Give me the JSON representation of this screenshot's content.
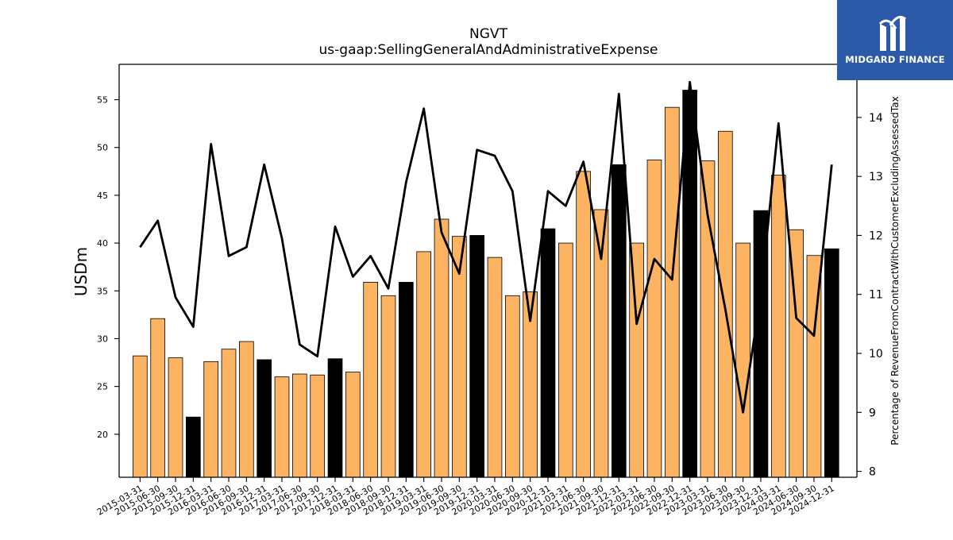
{
  "brand": {
    "name": "MIDGARD FINANCE",
    "bg_color": "#2d5aa8"
  },
  "chart_data": {
    "type": "bar",
    "title": "NGVT",
    "subtitle": "us-gaap:SellingGeneralAndAdministrativeExpense",
    "ylabel": "USDm",
    "ylabel_right": "Percentage of RevenueFromContractWithCustomerExcludingAssessedTax",
    "ylim": [
      15.5,
      58.7
    ],
    "ylim_right": [
      7.9,
      14.9
    ],
    "yticks": [
      20,
      25,
      30,
      35,
      40,
      45,
      50,
      55
    ],
    "yticks_right": [
      8,
      9,
      10,
      11,
      12,
      13,
      14
    ],
    "grid": false,
    "colors": {
      "bar_quarter": "#fdb462",
      "bar_year_end": "#000000",
      "line": "#000000"
    },
    "categories": [
      "2015-03-31",
      "2015-06-30",
      "2015-09-30",
      "2015-12-31",
      "2016-03-31",
      "2016-06-30",
      "2016-09-30",
      "2016-12-31",
      "2017-03-31",
      "2017-06-30",
      "2017-09-30",
      "2017-12-31",
      "2018-03-31",
      "2018-06-30",
      "2018-09-30",
      "2018-12-31",
      "2019-03-31",
      "2019-06-30",
      "2019-09-30",
      "2019-12-31",
      "2020-03-31",
      "2020-06-30",
      "2020-09-30",
      "2020-12-31",
      "2021-03-31",
      "2021-06-30",
      "2021-09-30",
      "2021-12-31",
      "2022-03-31",
      "2022-06-30",
      "2022-09-30",
      "2022-12-31",
      "2023-03-31",
      "2023-06-30",
      "2023-09-30",
      "2023-12-31",
      "2024-03-31",
      "2024-06-30",
      "2024-09-30",
      "2024-12-31"
    ],
    "series": [
      {
        "axis": "left",
        "kind": "bar",
        "values": [
          28.2,
          32.1,
          28.0,
          21.8,
          27.6,
          28.9,
          29.7,
          27.8,
          26.0,
          26.3,
          26.2,
          27.9,
          26.5,
          35.9,
          34.5,
          35.9,
          39.1,
          42.5,
          40.7,
          40.8,
          38.5,
          34.5,
          34.9,
          41.5,
          40.0,
          47.5,
          43.5,
          48.2,
          40.0,
          48.7,
          54.2,
          56.0,
          48.6,
          51.7,
          40.0,
          43.4,
          47.1,
          41.4,
          38.7,
          39.4
        ],
        "year_end": [
          false,
          false,
          false,
          true,
          false,
          false,
          false,
          true,
          false,
          false,
          false,
          true,
          false,
          false,
          false,
          true,
          false,
          false,
          false,
          true,
          false,
          false,
          false,
          true,
          false,
          false,
          false,
          true,
          false,
          false,
          false,
          true,
          false,
          false,
          false,
          true,
          false,
          false,
          false,
          true
        ]
      },
      {
        "axis": "right",
        "kind": "line",
        "values": [
          11.8,
          12.25,
          10.95,
          10.45,
          13.55,
          11.65,
          11.8,
          13.2,
          11.95,
          10.15,
          9.95,
          12.15,
          11.3,
          11.65,
          11.1,
          12.9,
          14.15,
          12.05,
          11.35,
          13.45,
          13.35,
          12.75,
          10.55,
          12.75,
          12.5,
          13.25,
          11.6,
          14.4,
          10.5,
          11.6,
          11.25,
          14.6,
          12.35,
          10.75,
          9.0,
          11.0,
          13.9,
          10.6,
          10.3,
          13.2
        ]
      }
    ]
  }
}
